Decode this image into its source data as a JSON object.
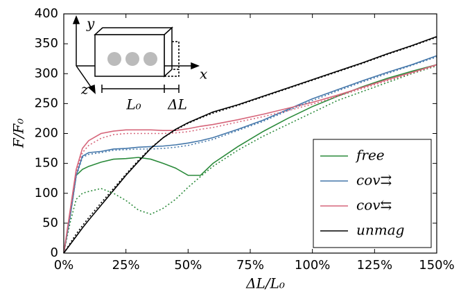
{
  "chart_data": {
    "type": "line",
    "xlabel": "ΔL/L₀",
    "ylabel": "F/F₀",
    "x": [
      0,
      2.5,
      5,
      7.5,
      10,
      15,
      20,
      25,
      30,
      35,
      40,
      45,
      50,
      55,
      60,
      70,
      80,
      90,
      100,
      110,
      120,
      130,
      140,
      150
    ],
    "series": [
      {
        "name": "free",
        "color": "#2a8a3a",
        "dash": false,
        "values": [
          0,
          60,
          130,
          140,
          145,
          152,
          157,
          158,
          160,
          157,
          150,
          142,
          130,
          130,
          150,
          178,
          203,
          225,
          245,
          262,
          278,
          292,
          304,
          315
        ]
      },
      {
        "name": "cov⇉",
        "color": "#4477aa",
        "dash": false,
        "values": [
          0,
          60,
          130,
          162,
          168,
          170,
          174,
          175,
          177,
          178,
          179,
          181,
          184,
          188,
          193,
          207,
          222,
          240,
          258,
          273,
          288,
          302,
          315,
          330
        ]
      },
      {
        "name": "cov⇆",
        "color": "#d6657a",
        "dash": false,
        "values": [
          0,
          70,
          140,
          175,
          188,
          200,
          204,
          206,
          206,
          206,
          205,
          205,
          208,
          212,
          215,
          223,
          232,
          242,
          252,
          264,
          277,
          290,
          302,
          315
        ]
      },
      {
        "name": "unmag",
        "color": "#000000",
        "dash": false,
        "values": [
          0,
          14,
          28,
          42,
          55,
          80,
          105,
          130,
          153,
          175,
          193,
          207,
          218,
          227,
          236,
          248,
          262,
          276,
          290,
          304,
          318,
          333,
          347,
          362
        ]
      },
      {
        "color": "#2a8a3a",
        "dash": true,
        "values": [
          0,
          50,
          90,
          100,
          103,
          108,
          100,
          88,
          72,
          65,
          75,
          90,
          110,
          128,
          145,
          172,
          195,
          215,
          235,
          255,
          270,
          285,
          300,
          313
        ]
      },
      {
        "color": "#4477aa",
        "dash": true,
        "values": [
          0,
          58,
          128,
          160,
          165,
          168,
          172,
          173,
          174,
          174,
          175,
          177,
          180,
          185,
          190,
          205,
          220,
          238,
          255,
          271,
          286,
          300,
          314,
          328
        ]
      },
      {
        "color": "#d6657a",
        "dash": true,
        "values": [
          0,
          65,
          135,
          168,
          180,
          192,
          198,
          200,
          200,
          200,
          200,
          201,
          203,
          207,
          210,
          219,
          228,
          238,
          249,
          262,
          275,
          288,
          301,
          314
        ]
      },
      {
        "color": "#000000",
        "dash": true,
        "values": [
          0,
          16,
          32,
          46,
          59,
          84,
          108,
          132,
          155,
          176,
          193,
          206,
          217,
          226,
          234,
          247,
          261,
          275,
          289,
          303,
          317,
          332,
          346,
          361
        ]
      }
    ],
    "xlim": [
      0,
      150
    ],
    "ylim": [
      0,
      400
    ],
    "xticks": [
      {
        "value": 0,
        "label": "0%"
      },
      {
        "value": 25,
        "label": "25%"
      },
      {
        "value": 50,
        "label": "50%"
      },
      {
        "value": 75,
        "label": "75%"
      },
      {
        "value": 100,
        "label": "100%"
      },
      {
        "value": 125,
        "label": "125%"
      },
      {
        "value": 150,
        "label": "150%"
      }
    ],
    "yticks": [
      0,
      50,
      100,
      150,
      200,
      250,
      300,
      350,
      400
    ],
    "legend": "lower right",
    "inset": {
      "y": "y",
      "x": "x",
      "z": "z",
      "length": "L₀",
      "delta": "ΔL"
    }
  }
}
